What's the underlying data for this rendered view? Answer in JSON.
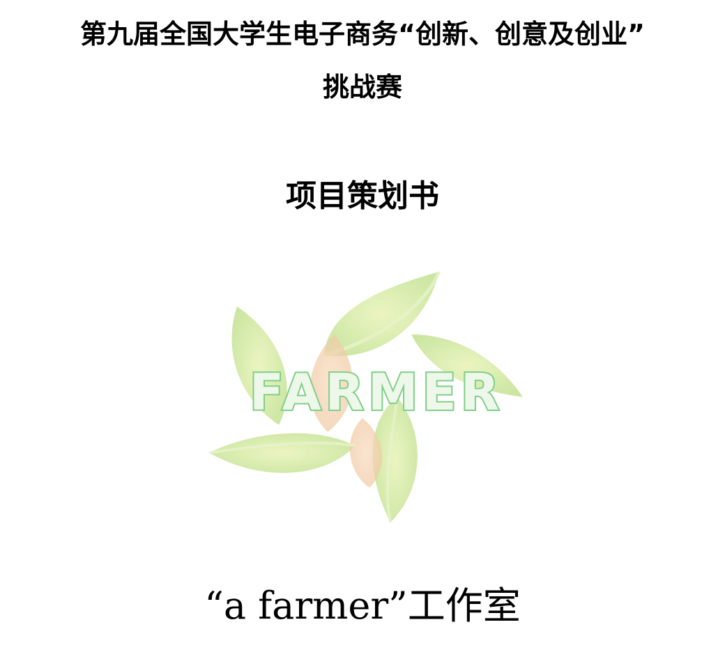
{
  "header": {
    "title_line1": "第九届全国大学生电子商务“创新、创意及创业”",
    "title_line2": "挑战赛"
  },
  "document": {
    "title": "项目策划书"
  },
  "logo": {
    "wordmark": "FARMER",
    "leaf_colors": [
      "#cfe6a0",
      "#b9dd86",
      "#f1c6a0",
      "#e4efb6"
    ],
    "wordmark_color": "#7fcf87"
  },
  "footer": {
    "studio": "“a farmer”工作室"
  }
}
